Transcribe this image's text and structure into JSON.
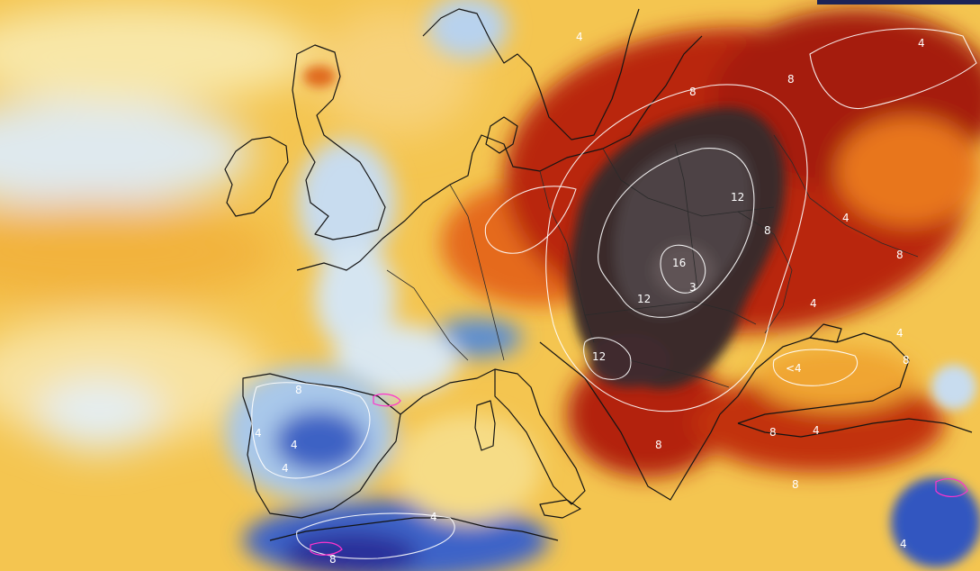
{
  "map": {
    "contour_labels": {
      "l12_a": "12",
      "l8_a": "8",
      "l8_b": "8",
      "l16": "16",
      "l12_b": "12",
      "l12_c": "12",
      "l3": "3",
      "l8_c": "8",
      "l4_a": "4",
      "l4_b": "4",
      "l4_c": "4",
      "l4_d": "4",
      "l8_d": "8",
      "l4_e": "<4",
      "l4_f": "4",
      "l8_e": "8",
      "l8_f": "8",
      "l4_g": "4",
      "l4_h": "4",
      "l4_i": "4",
      "l4_j": "4",
      "l8_g": "8",
      "l8_h": "8",
      "l4_k": "4",
      "l8_i": "8",
      "l4_l": "4",
      "l8_j": "8"
    },
    "colors": {
      "very_hot": "#3a2a2a",
      "hot": "#8e1a08",
      "warm": "#d9480f",
      "mild_warm": "#f5a623",
      "neutral": "#f6d35c",
      "cool": "#d8e8f2",
      "cold": "#5a8fd0",
      "very_cold": "#283a9a",
      "contour_line": "#ffffff",
      "coastline": "#141414"
    },
    "top_bar_color": "#1c2357"
  }
}
